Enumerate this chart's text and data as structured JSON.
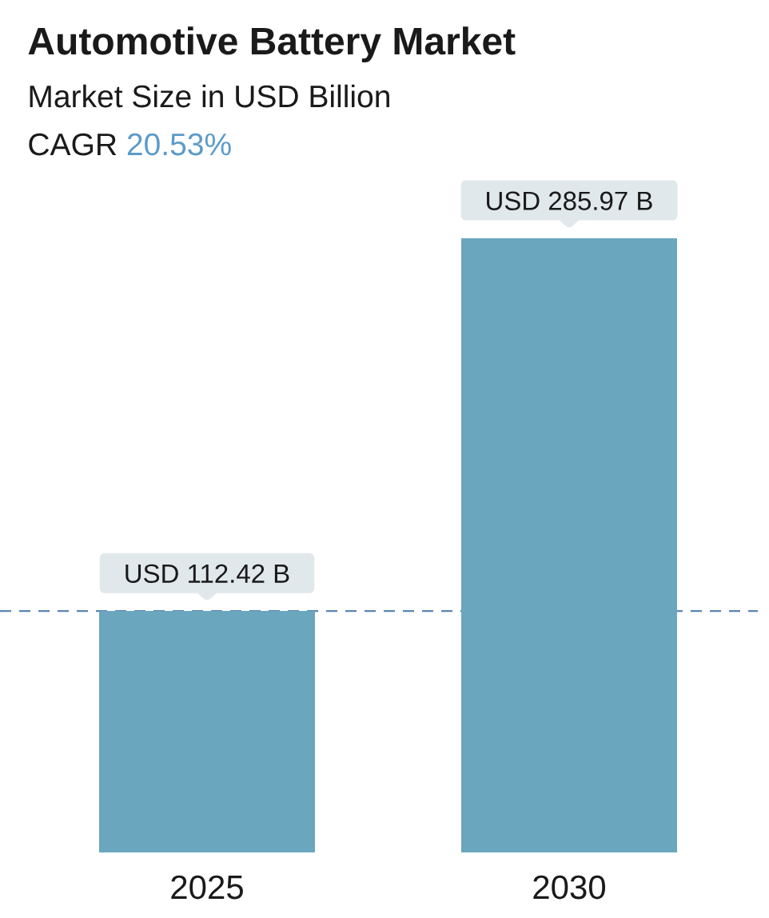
{
  "chart_data": {
    "type": "bar",
    "title": "Automotive Battery Market",
    "subtitle": "Market Size in USD Billion",
    "annotations": [
      "CAGR",
      "20.53%"
    ],
    "categories": [
      "2025",
      "2030"
    ],
    "values": [
      112.42,
      285.97
    ],
    "color": "#6aa6be",
    "value_labels": [
      "USD 112.42 B",
      "USD 285.97 B"
    ],
    "ref_lines": [
      {
        "axis": "y",
        "value": 112.42,
        "color": "#5b86b0",
        "line_style": "dashed"
      }
    ]
  }
}
